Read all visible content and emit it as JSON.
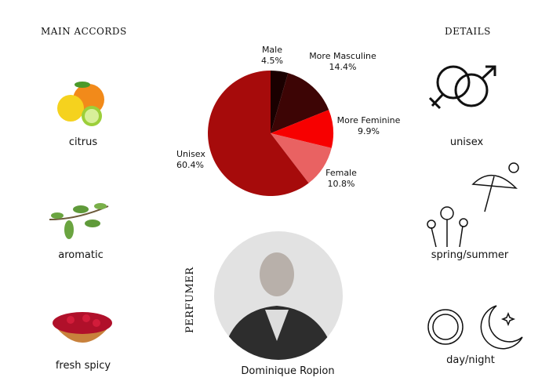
{
  "main_accords": {
    "title": "MAIN ACCORDS",
    "items": [
      {
        "label": "citrus",
        "icon": "citrus-fruit-image"
      },
      {
        "label": "aromatic",
        "icon": "herb-sprig-image"
      },
      {
        "label": "fresh spicy",
        "icon": "cranberry-bowl-image"
      }
    ]
  },
  "details": {
    "title": "DETAILS",
    "items": [
      {
        "label": "unisex",
        "icon": "gender-symbols-icon"
      },
      {
        "label": "spring/summer",
        "icon": "flowers-umbrella-sun-icon"
      },
      {
        "label": "day/night",
        "icon": "sun-moon-icon"
      }
    ]
  },
  "perfumer": {
    "heading": "PERFUMER",
    "name": "Dominique Ropion"
  },
  "chart_data": {
    "type": "pie",
    "slices": [
      {
        "name": "Male",
        "value": 4.5,
        "label": "4.5%",
        "color": "#1a0000"
      },
      {
        "name": "More Masculine",
        "value": 14.4,
        "label": "14.4%",
        "color": "#3d0505"
      },
      {
        "name": "More Feminine",
        "value": 9.9,
        "label": "9.9%",
        "color": "#f70000"
      },
      {
        "name": "Female",
        "value": 10.8,
        "label": "10.8%",
        "color": "#e96262"
      },
      {
        "name": "Unisex",
        "value": 60.4,
        "label": "60.4%",
        "color": "#a60b0b"
      }
    ]
  }
}
